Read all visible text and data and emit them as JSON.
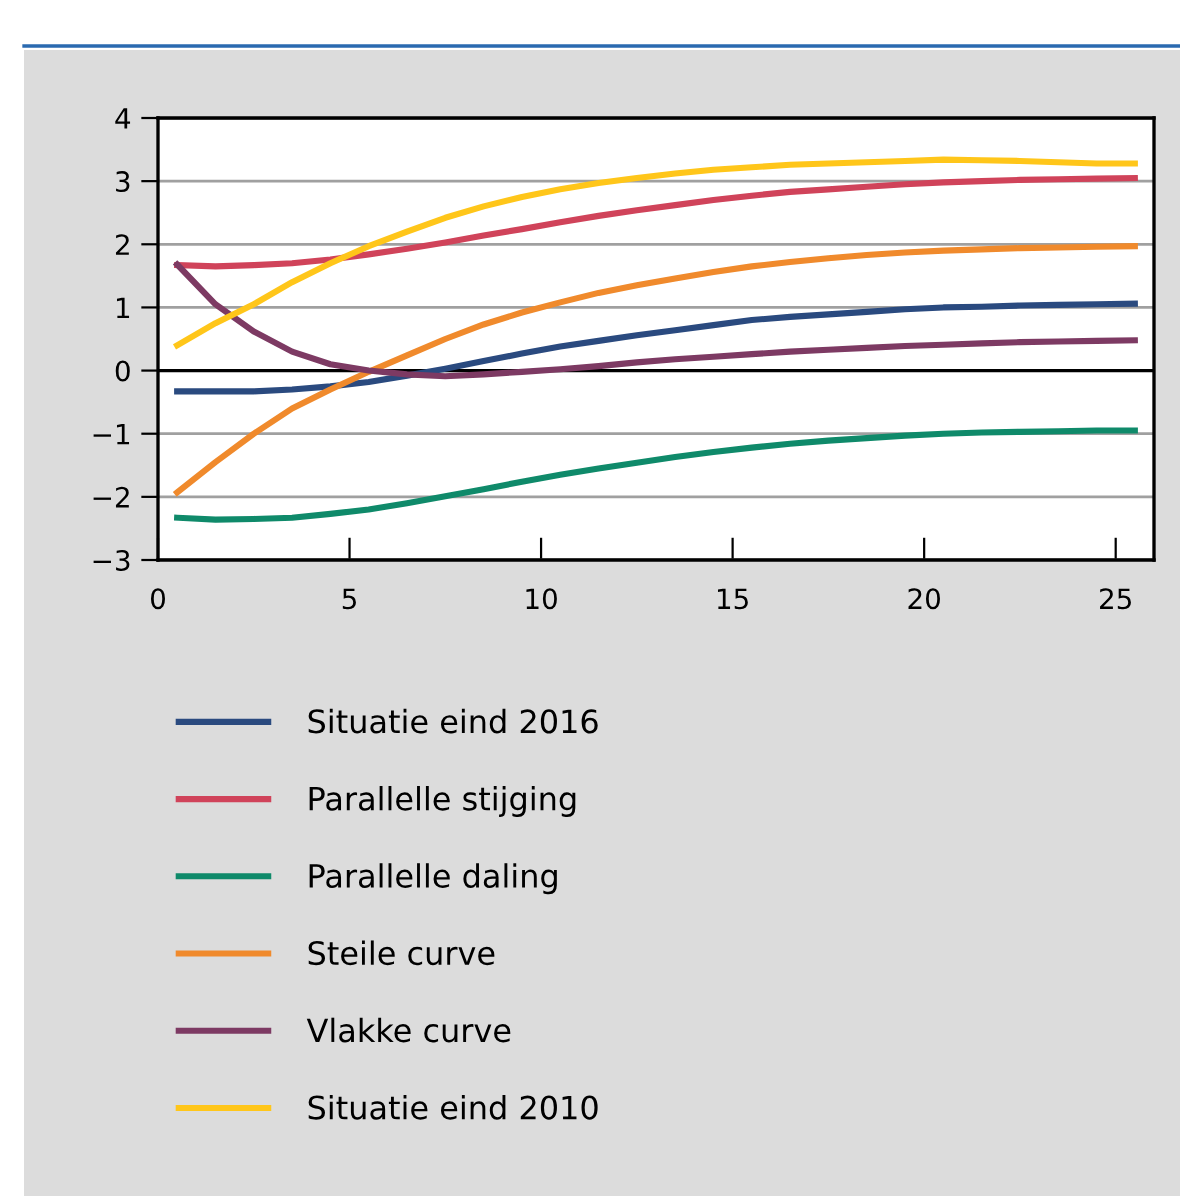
{
  "chart_data": {
    "type": "line",
    "x": [
      0.5,
      1.5,
      2.5,
      3.5,
      4.5,
      5.5,
      6.5,
      7.5,
      8.5,
      9.5,
      10.5,
      11.5,
      12.5,
      13.5,
      14.5,
      15.5,
      16.5,
      17.5,
      18.5,
      19.5,
      20.5,
      21.5,
      22.5,
      23.5,
      24.5,
      25.5
    ],
    "series": [
      {
        "name": "Situatie eind 2016",
        "color": "#2a4a7f",
        "values": [
          -0.33,
          -0.33,
          -0.33,
          -0.3,
          -0.25,
          -0.18,
          -0.08,
          0.03,
          0.15,
          0.27,
          0.38,
          0.47,
          0.56,
          0.64,
          0.72,
          0.8,
          0.85,
          0.89,
          0.93,
          0.97,
          1.0,
          1.01,
          1.03,
          1.04,
          1.05,
          1.06
        ]
      },
      {
        "name": "Parallelle stijging",
        "color": "#d0435a",
        "values": [
          1.67,
          1.65,
          1.67,
          1.7,
          1.76,
          1.84,
          1.93,
          2.03,
          2.14,
          2.24,
          2.35,
          2.45,
          2.54,
          2.62,
          2.7,
          2.77,
          2.83,
          2.87,
          2.91,
          2.95,
          2.98,
          3.0,
          3.02,
          3.03,
          3.04,
          3.05
        ]
      },
      {
        "name": "Parallelle daling",
        "color": "#0f8a6a",
        "values": [
          -2.33,
          -2.36,
          -2.35,
          -2.33,
          -2.27,
          -2.2,
          -2.1,
          -1.99,
          -1.88,
          -1.76,
          -1.65,
          -1.55,
          -1.46,
          -1.37,
          -1.29,
          -1.22,
          -1.16,
          -1.11,
          -1.07,
          -1.03,
          -1.0,
          -0.98,
          -0.97,
          -0.96,
          -0.95,
          -0.95
        ]
      },
      {
        "name": "Steile curve",
        "color": "#f08a2c",
        "values": [
          -1.93,
          -1.45,
          -1.0,
          -0.6,
          -0.3,
          -0.02,
          0.24,
          0.5,
          0.73,
          0.92,
          1.08,
          1.23,
          1.35,
          1.46,
          1.56,
          1.65,
          1.72,
          1.78,
          1.83,
          1.87,
          1.9,
          1.92,
          1.94,
          1.95,
          1.96,
          1.97
        ]
      },
      {
        "name": "Vlakke curve",
        "color": "#7d3a63",
        "values": [
          1.68,
          1.05,
          0.62,
          0.3,
          0.1,
          0.0,
          -0.06,
          -0.09,
          -0.06,
          -0.02,
          0.02,
          0.07,
          0.13,
          0.18,
          0.22,
          0.26,
          0.3,
          0.33,
          0.36,
          0.39,
          0.41,
          0.43,
          0.45,
          0.46,
          0.47,
          0.48
        ]
      },
      {
        "name": "Situatie eind 2010",
        "color": "#ffc61a",
        "values": [
          0.4,
          0.75,
          1.05,
          1.4,
          1.7,
          1.97,
          2.2,
          2.42,
          2.6,
          2.75,
          2.87,
          2.97,
          3.05,
          3.12,
          3.18,
          3.22,
          3.26,
          3.28,
          3.3,
          3.32,
          3.34,
          3.33,
          3.32,
          3.3,
          3.28,
          3.28
        ]
      }
    ],
    "xlim": [
      0,
      26
    ],
    "ylim": [
      -3,
      4
    ],
    "xticks": [
      0,
      5,
      10,
      15,
      20,
      25
    ],
    "yticks": [
      {
        "value": -3,
        "label": "−3"
      },
      {
        "value": -2,
        "label": "−2"
      },
      {
        "value": -1,
        "label": "−1"
      },
      0,
      1,
      2,
      3,
      4
    ],
    "ref_lines": [
      {
        "axis": "y",
        "value": 0,
        "color": "#000000"
      }
    ],
    "grid": "y",
    "legend": "bottom",
    "marker": "none",
    "line_style": "solid"
  }
}
